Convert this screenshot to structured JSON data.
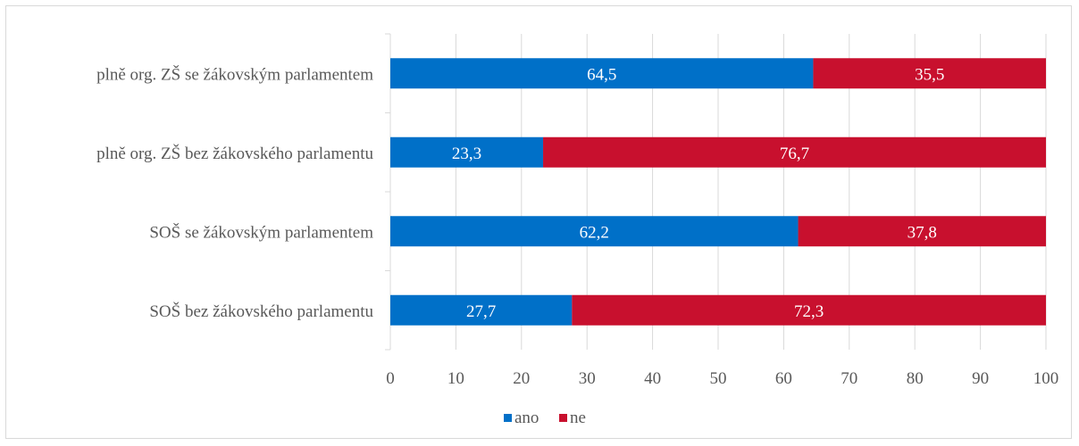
{
  "chart_data": {
    "type": "bar",
    "orientation": "horizontal",
    "stacked": true,
    "categories": [
      "plně org. ZŠ se žákovským parlamentem",
      "plně org. ZŠ bez žákovského parlamentu",
      "SOŠ se žákovským parlamentem",
      "SOŠ bez žákovského parlamentu"
    ],
    "series": [
      {
        "name": "ano",
        "values": [
          64.5,
          23.3,
          62.2,
          27.7
        ],
        "labels": [
          "64,5",
          "23,3",
          "62,2",
          "27,7"
        ],
        "color": "#0070c8"
      },
      {
        "name": "ne",
        "values": [
          35.5,
          76.7,
          37.8,
          72.3
        ],
        "labels": [
          "35,5",
          "76,7",
          "37,8",
          "72,3"
        ],
        "color": "#c8102e"
      }
    ],
    "xlim": [
      0,
      100
    ],
    "xticks": [
      "0",
      "10",
      "20",
      "30",
      "40",
      "50",
      "60",
      "70",
      "80",
      "90",
      "100"
    ],
    "title": "",
    "xlabel": "",
    "ylabel": "",
    "grid": "vertical",
    "legend_position": "bottom"
  }
}
